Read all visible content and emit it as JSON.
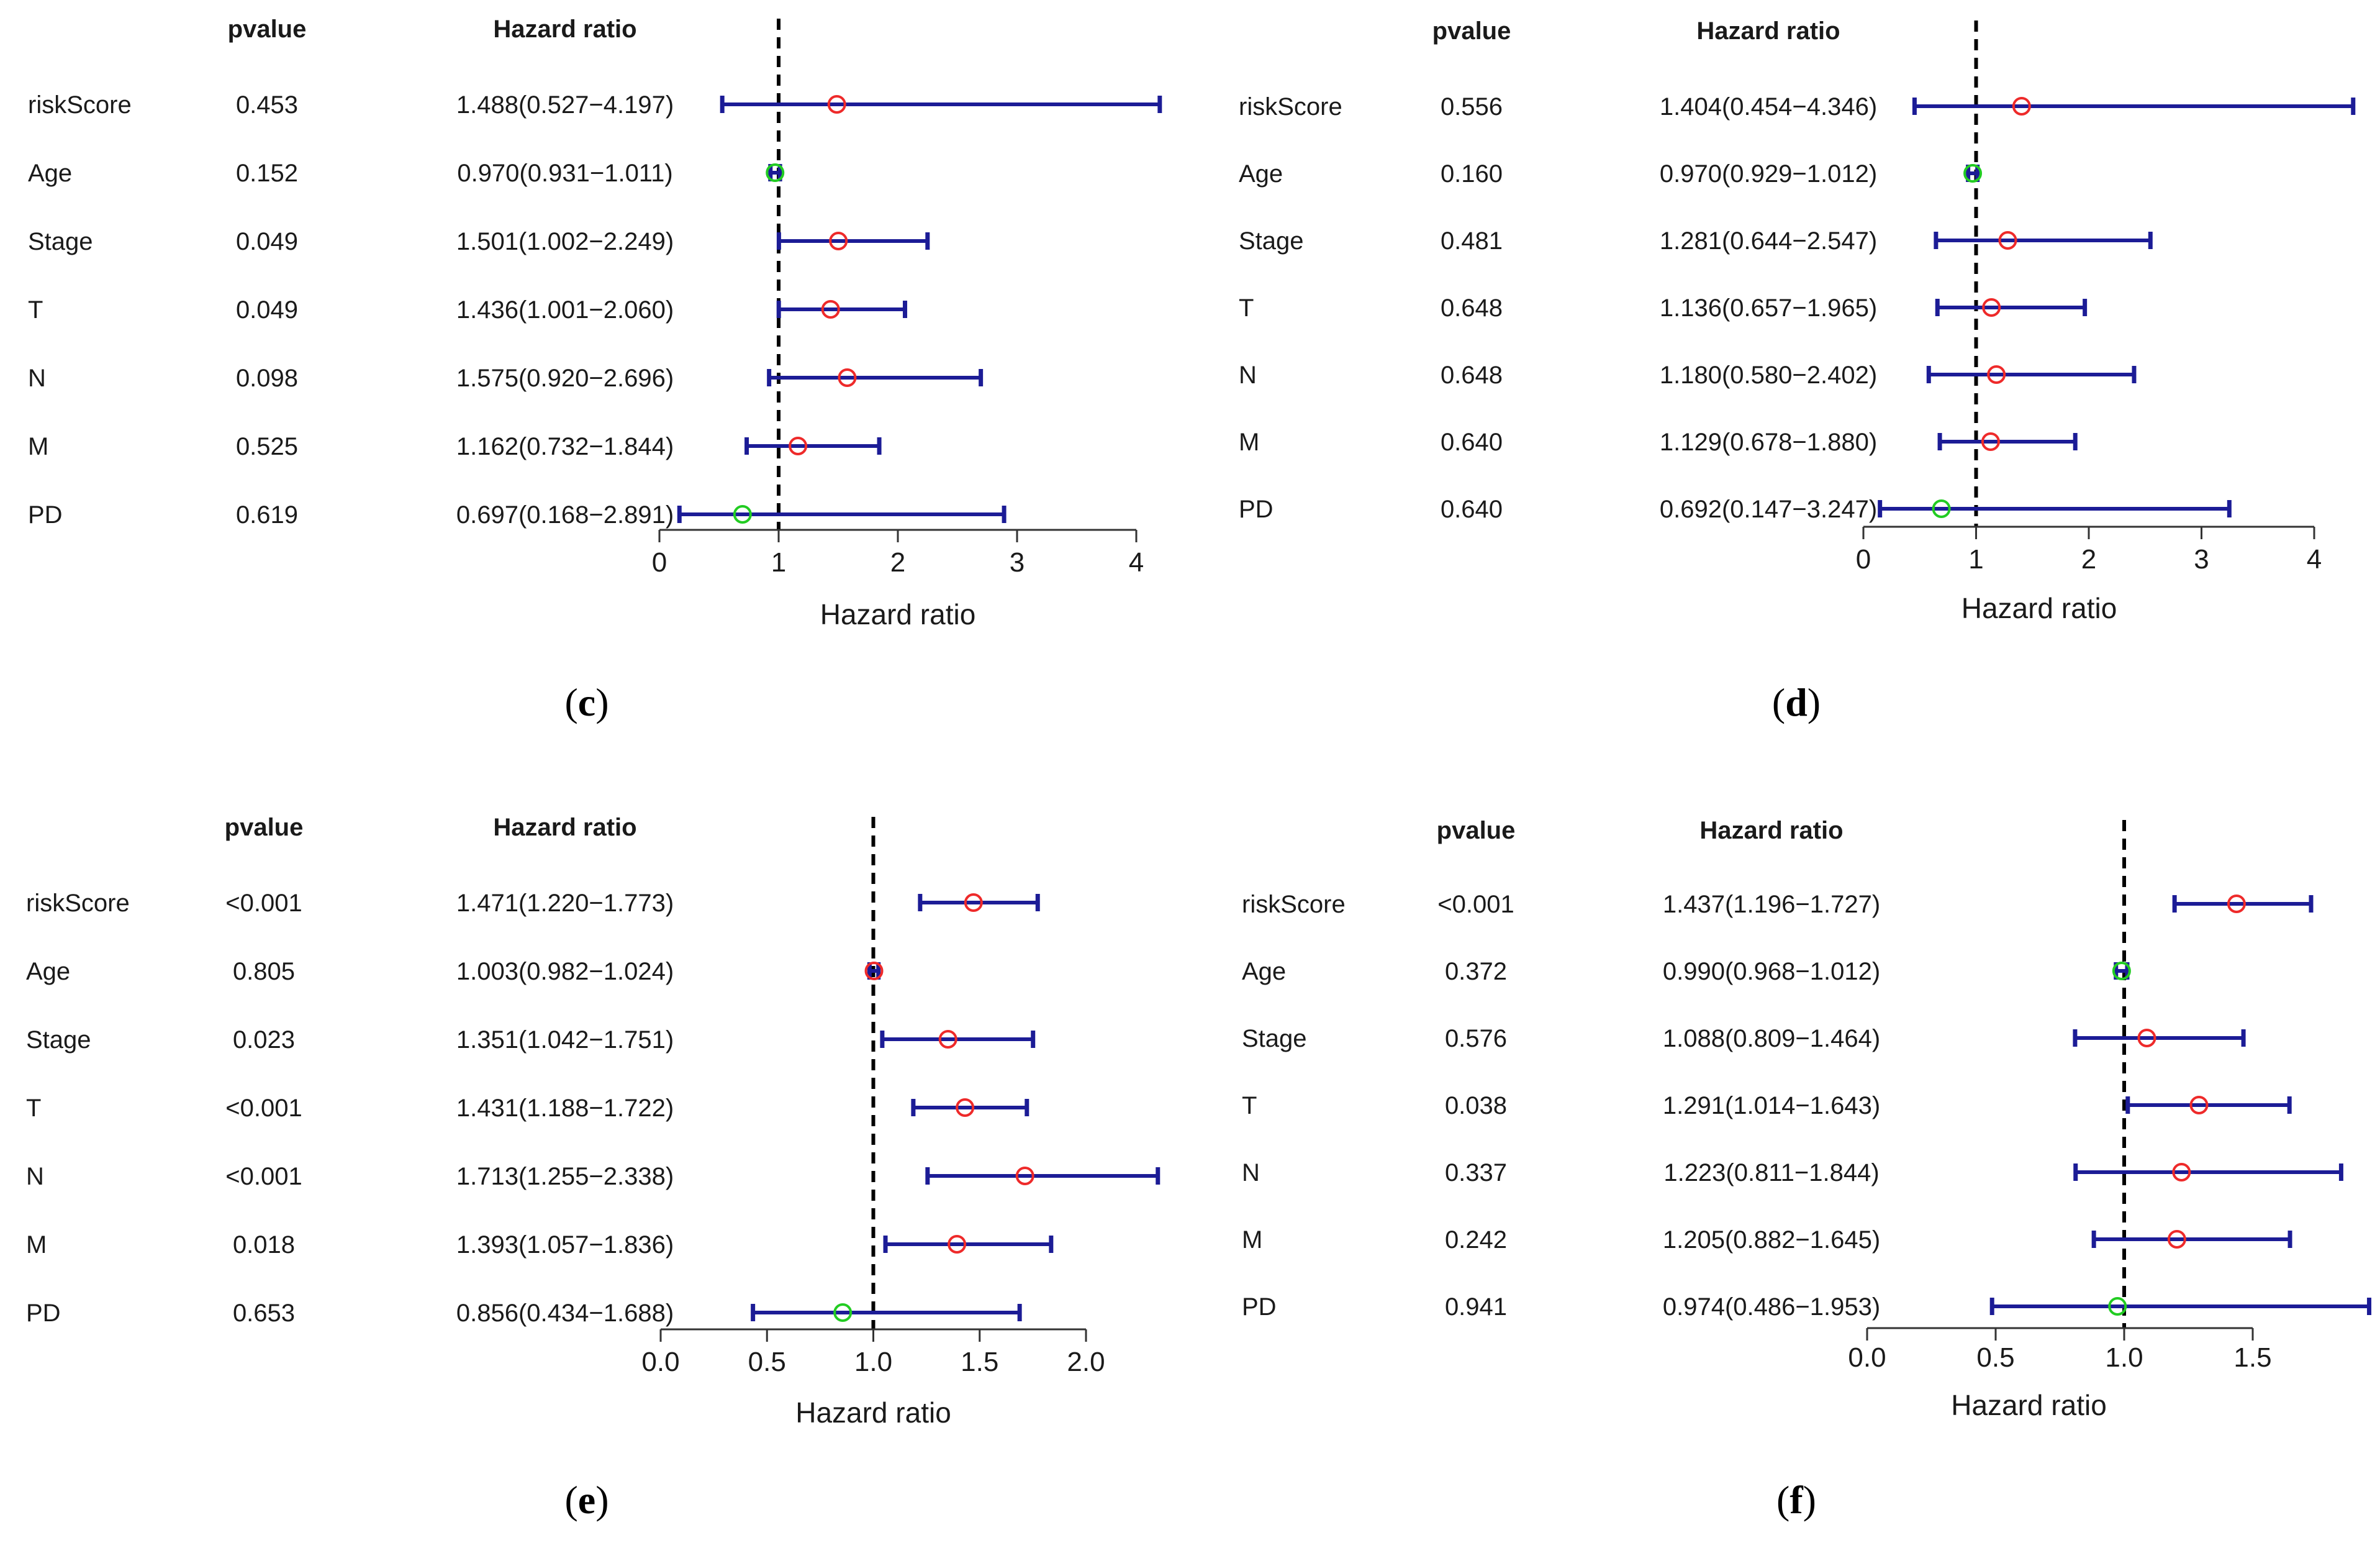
{
  "colors": {
    "ci_line": "#1c1c96",
    "risk_marker": "#ee2a2a",
    "protective_marker": "#22cc22",
    "text": "#1a1a1a"
  },
  "chart_data": [
    {
      "type": "forest",
      "panel_label": "c",
      "col_pvalue_header": "pvalue",
      "col_hr_header": "Hazard ratio",
      "xlabel": "Hazard ratio",
      "xlim": [
        0,
        4
      ],
      "ticks": [
        0,
        1,
        2,
        3,
        4
      ],
      "tick_labels": [
        "0",
        "1",
        "2",
        "3",
        "4"
      ],
      "rows": [
        {
          "name": "riskScore",
          "pvalue": "0.453",
          "hr_text": "1.488(0.527−4.197)",
          "hr": 1.488,
          "lo": 0.527,
          "hi": 4.197
        },
        {
          "name": "Age",
          "pvalue": "0.152",
          "hr_text": "0.970(0.931−1.011)",
          "hr": 0.97,
          "lo": 0.931,
          "hi": 1.011
        },
        {
          "name": "Stage",
          "pvalue": "0.049",
          "hr_text": "1.501(1.002−2.249)",
          "hr": 1.501,
          "lo": 1.002,
          "hi": 2.249
        },
        {
          "name": "T",
          "pvalue": "0.049",
          "hr_text": "1.436(1.001−2.060)",
          "hr": 1.436,
          "lo": 1.001,
          "hi": 2.06
        },
        {
          "name": "N",
          "pvalue": "0.098",
          "hr_text": "1.575(0.920−2.696)",
          "hr": 1.575,
          "lo": 0.92,
          "hi": 2.696
        },
        {
          "name": "M",
          "pvalue": "0.525",
          "hr_text": "1.162(0.732−1.844)",
          "hr": 1.162,
          "lo": 0.732,
          "hi": 1.844
        },
        {
          "name": "PD",
          "pvalue": "0.619",
          "hr_text": "0.697(0.168−2.891)",
          "hr": 0.697,
          "lo": 0.168,
          "hi": 2.891
        }
      ]
    },
    {
      "type": "forest",
      "panel_label": "d",
      "col_pvalue_header": "pvalue",
      "col_hr_header": "Hazard ratio",
      "xlabel": "Hazard ratio",
      "xlim": [
        0,
        4
      ],
      "ticks": [
        0,
        1,
        2,
        3,
        4
      ],
      "tick_labels": [
        "0",
        "1",
        "2",
        "3",
        "4"
      ],
      "rows": [
        {
          "name": "riskScore",
          "pvalue": "0.556",
          "hr_text": "1.404(0.454−4.346)",
          "hr": 1.404,
          "lo": 0.454,
          "hi": 4.346
        },
        {
          "name": "Age",
          "pvalue": "0.160",
          "hr_text": "0.970(0.929−1.012)",
          "hr": 0.97,
          "lo": 0.929,
          "hi": 1.012
        },
        {
          "name": "Stage",
          "pvalue": "0.481",
          "hr_text": "1.281(0.644−2.547)",
          "hr": 1.281,
          "lo": 0.644,
          "hi": 2.547
        },
        {
          "name": "T",
          "pvalue": "0.648",
          "hr_text": "1.136(0.657−1.965)",
          "hr": 1.136,
          "lo": 0.657,
          "hi": 1.965
        },
        {
          "name": "N",
          "pvalue": "0.648",
          "hr_text": "1.180(0.580−2.402)",
          "hr": 1.18,
          "lo": 0.58,
          "hi": 2.402
        },
        {
          "name": "M",
          "pvalue": "0.640",
          "hr_text": "1.129(0.678−1.880)",
          "hr": 1.129,
          "lo": 0.678,
          "hi": 1.88
        },
        {
          "name": "PD",
          "pvalue": "0.640",
          "hr_text": "0.692(0.147−3.247)",
          "hr": 0.692,
          "lo": 0.147,
          "hi": 3.247
        }
      ]
    },
    {
      "type": "forest",
      "panel_label": "e",
      "col_pvalue_header": "pvalue",
      "col_hr_header": "Hazard ratio",
      "xlabel": "Hazard ratio",
      "xlim": [
        0,
        2
      ],
      "ticks": [
        0,
        0.5,
        1,
        1.5,
        2
      ],
      "tick_labels": [
        "0.0",
        "0.5",
        "1.0",
        "1.5",
        "2.0"
      ],
      "rows": [
        {
          "name": "riskScore",
          "pvalue": "<0.001",
          "hr_text": "1.471(1.220−1.773)",
          "hr": 1.471,
          "lo": 1.22,
          "hi": 1.773
        },
        {
          "name": "Age",
          "pvalue": "0.805",
          "hr_text": "1.003(0.982−1.024)",
          "hr": 1.003,
          "lo": 0.982,
          "hi": 1.024
        },
        {
          "name": "Stage",
          "pvalue": "0.023",
          "hr_text": "1.351(1.042−1.751)",
          "hr": 1.351,
          "lo": 1.042,
          "hi": 1.751
        },
        {
          "name": "T",
          "pvalue": "<0.001",
          "hr_text": "1.431(1.188−1.722)",
          "hr": 1.431,
          "lo": 1.188,
          "hi": 1.722
        },
        {
          "name": "N",
          "pvalue": "<0.001",
          "hr_text": "1.713(1.255−2.338)",
          "hr": 1.713,
          "lo": 1.255,
          "hi": 2.338
        },
        {
          "name": "M",
          "pvalue": "0.018",
          "hr_text": "1.393(1.057−1.836)",
          "hr": 1.393,
          "lo": 1.057,
          "hi": 1.836
        },
        {
          "name": "PD",
          "pvalue": "0.653",
          "hr_text": "0.856(0.434−1.688)",
          "hr": 0.856,
          "lo": 0.434,
          "hi": 1.688
        }
      ]
    },
    {
      "type": "forest",
      "panel_label": "f",
      "col_pvalue_header": "pvalue",
      "col_hr_header": "Hazard ratio",
      "xlabel": "Hazard ratio",
      "xlim": [
        0,
        1.5
      ],
      "ticks": [
        0,
        0.5,
        1,
        1.5
      ],
      "tick_labels": [
        "0.0",
        "0.5",
        "1.0",
        "1.5"
      ],
      "rows": [
        {
          "name": "riskScore",
          "pvalue": "<0.001",
          "hr_text": "1.437(1.196−1.727)",
          "hr": 1.437,
          "lo": 1.196,
          "hi": 1.727
        },
        {
          "name": "Age",
          "pvalue": "0.372",
          "hr_text": "0.990(0.968−1.012)",
          "hr": 0.99,
          "lo": 0.968,
          "hi": 1.012
        },
        {
          "name": "Stage",
          "pvalue": "0.576",
          "hr_text": "1.088(0.809−1.464)",
          "hr": 1.088,
          "lo": 0.809,
          "hi": 1.464
        },
        {
          "name": "T",
          "pvalue": "0.038",
          "hr_text": "1.291(1.014−1.643)",
          "hr": 1.291,
          "lo": 1.014,
          "hi": 1.643
        },
        {
          "name": "N",
          "pvalue": "0.337",
          "hr_text": "1.223(0.811−1.844)",
          "hr": 1.223,
          "lo": 0.811,
          "hi": 1.844
        },
        {
          "name": "M",
          "pvalue": "0.242",
          "hr_text": "1.205(0.882−1.645)",
          "hr": 1.205,
          "lo": 0.882,
          "hi": 1.645
        },
        {
          "name": "PD",
          "pvalue": "0.941",
          "hr_text": "0.974(0.486−1.953)",
          "hr": 0.974,
          "lo": 0.486,
          "hi": 1.953
        }
      ]
    }
  ]
}
